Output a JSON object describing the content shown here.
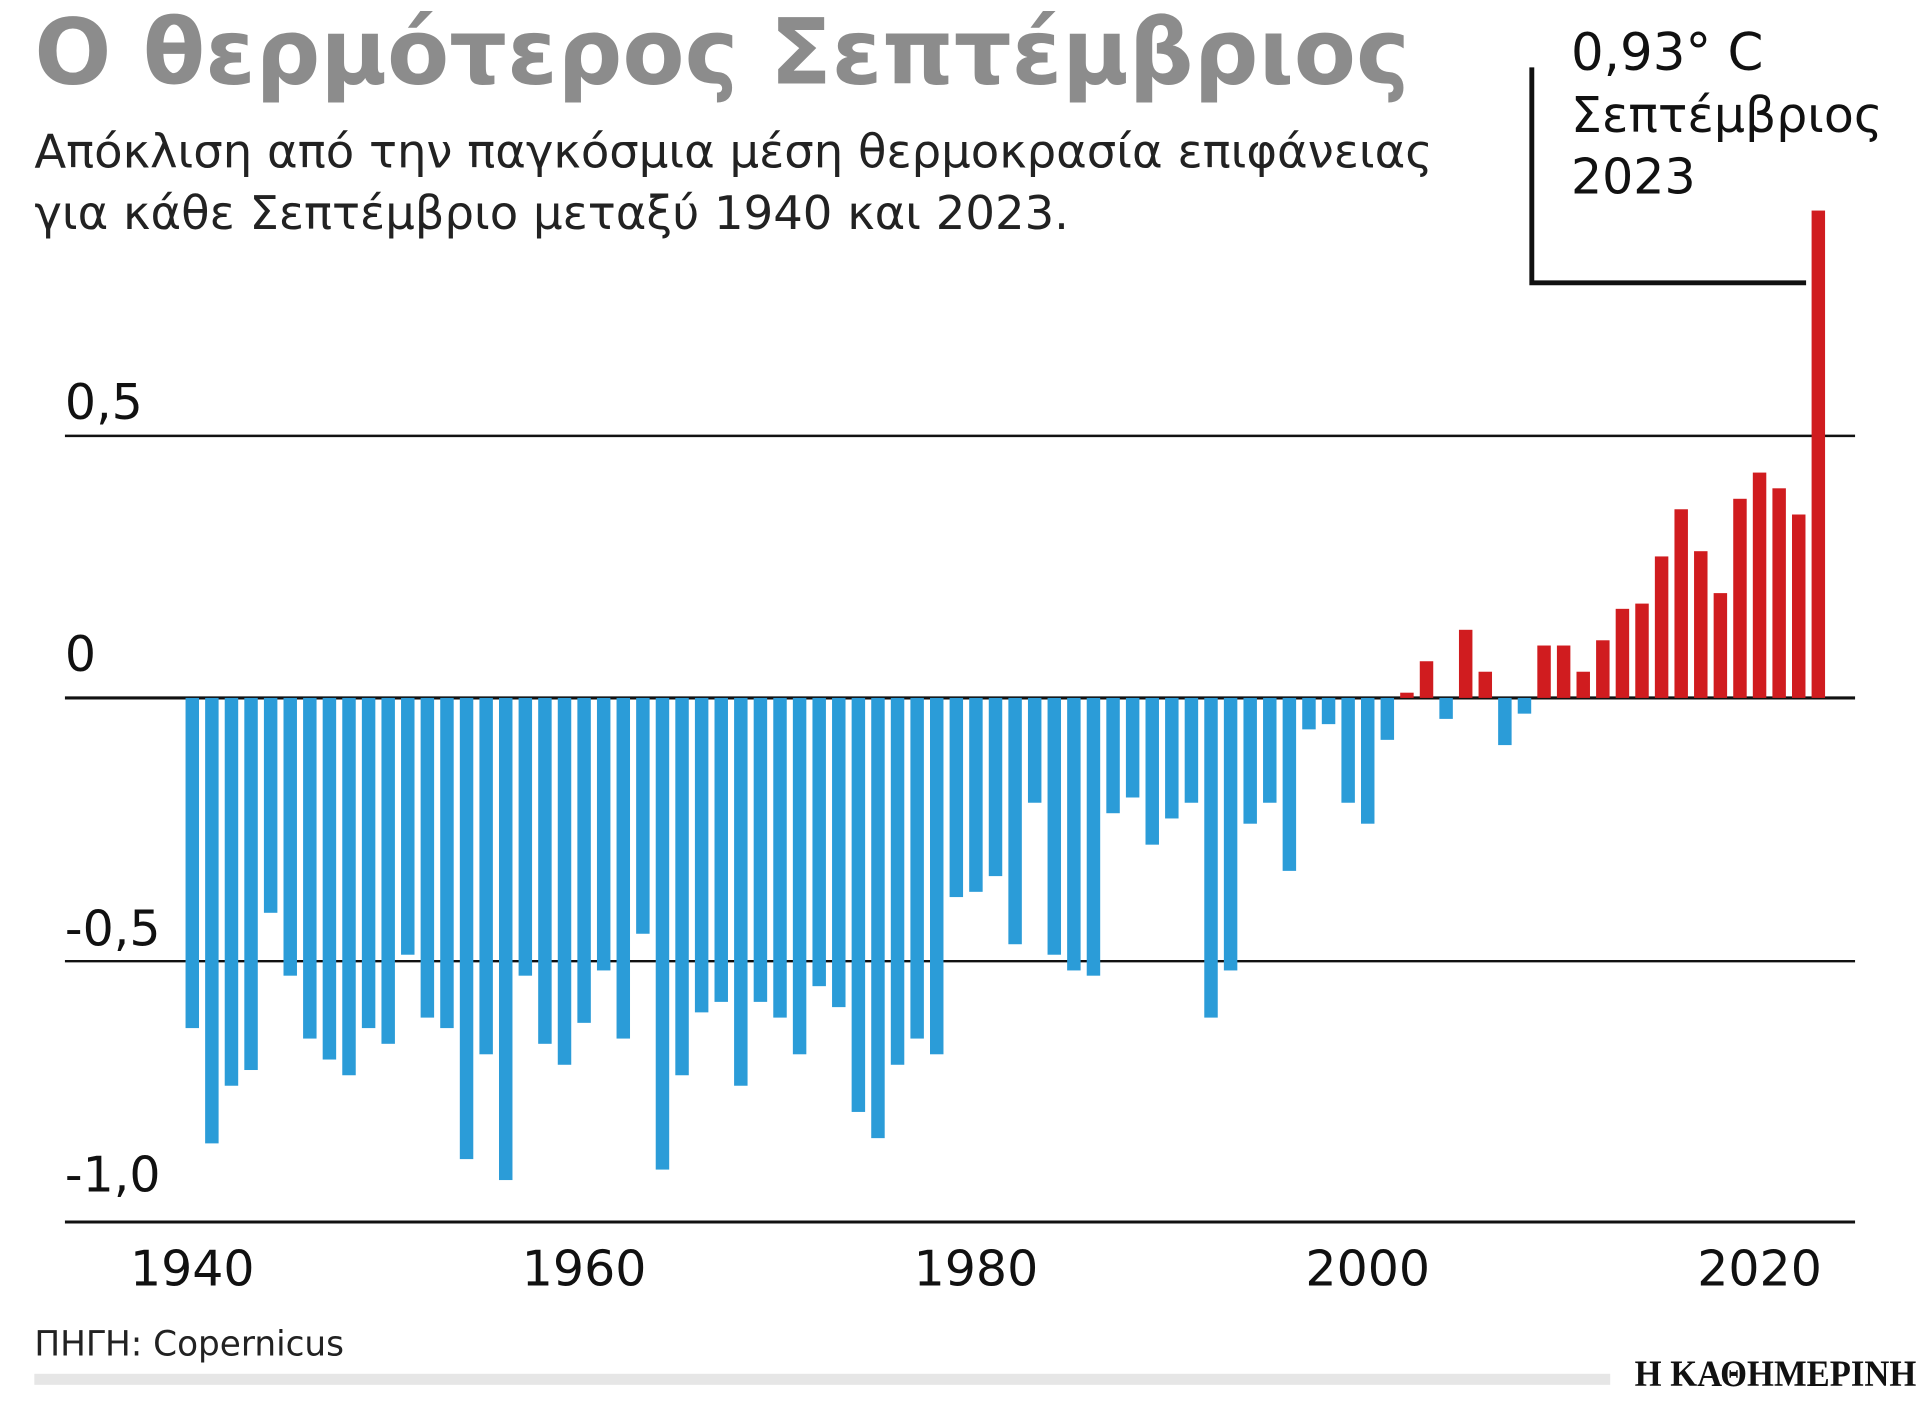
{
  "title": "Ο θερμότερος Σεπτέμβριος",
  "subtitle_line1": "Απόκλιση από την παγκόσμια μέση θερμοκρασία επιφάνειας",
  "subtitle_line2": "για κάθε Σεπτέμβριο μεταξύ 1940 και 2023.",
  "annotation": {
    "value": "0,93° C",
    "line2": "Σεπτέμβριος",
    "line3": "2023"
  },
  "source": "ΠΗΓΗ: Copernicus",
  "logo": "Η ΚΑΘΗΜΕΡΙΝΗ",
  "colors": {
    "negative": "#2b9cd8",
    "positive": "#d01c1f",
    "title": "#8c8c8c"
  },
  "chart_data": {
    "type": "bar",
    "title": "Ο θερμότερος Σεπτέμβριος",
    "xlabel": "",
    "ylabel": "",
    "ylim": [
      -1.0,
      0.93
    ],
    "grid": true,
    "y_ticks": [
      {
        "value": 0.5,
        "label": "0,5"
      },
      {
        "value": 0,
        "label": "0"
      },
      {
        "value": -0.5,
        "label": "-0,5"
      },
      {
        "value": -1.0,
        "label": "-1,0"
      }
    ],
    "x_ticks": [
      {
        "value": 1940,
        "label": "1940"
      },
      {
        "value": 1960,
        "label": "1960"
      },
      {
        "value": 1980,
        "label": "1980"
      },
      {
        "value": 2000,
        "label": "2000"
      },
      {
        "value": 2020,
        "label": "2020"
      }
    ],
    "x": [
      1940,
      1941,
      1942,
      1943,
      1944,
      1945,
      1946,
      1947,
      1948,
      1949,
      1950,
      1951,
      1952,
      1953,
      1954,
      1955,
      1956,
      1957,
      1958,
      1959,
      1960,
      1961,
      1962,
      1963,
      1964,
      1965,
      1966,
      1967,
      1968,
      1969,
      1970,
      1971,
      1972,
      1973,
      1974,
      1975,
      1976,
      1977,
      1978,
      1979,
      1980,
      1981,
      1982,
      1983,
      1984,
      1985,
      1986,
      1987,
      1988,
      1989,
      1990,
      1991,
      1992,
      1993,
      1994,
      1995,
      1996,
      1997,
      1998,
      1999,
      2000,
      2001,
      2002,
      2003,
      2004,
      2005,
      2006,
      2007,
      2008,
      2009,
      2010,
      2011,
      2012,
      2013,
      2014,
      2015,
      2016,
      2017,
      2018,
      2019,
      2020,
      2021,
      2022,
      2023
    ],
    "values": [
      -0.63,
      -0.85,
      -0.74,
      -0.71,
      -0.41,
      -0.53,
      -0.65,
      -0.69,
      -0.72,
      -0.63,
      -0.66,
      -0.49,
      -0.61,
      -0.63,
      -0.88,
      -0.68,
      -0.92,
      -0.53,
      -0.66,
      -0.7,
      -0.62,
      -0.52,
      -0.65,
      -0.45,
      -0.9,
      -0.72,
      -0.6,
      -0.58,
      -0.74,
      -0.58,
      -0.61,
      -0.68,
      -0.55,
      -0.59,
      -0.79,
      -0.84,
      -0.7,
      -0.65,
      -0.68,
      -0.38,
      -0.37,
      -0.34,
      -0.47,
      -0.2,
      -0.49,
      -0.52,
      -0.53,
      -0.22,
      -0.19,
      -0.28,
      -0.23,
      -0.2,
      -0.61,
      -0.52,
      -0.24,
      -0.2,
      -0.33,
      -0.06,
      -0.05,
      -0.2,
      -0.24,
      -0.08,
      0.01,
      0.07,
      -0.04,
      0.13,
      0.05,
      -0.09,
      -0.03,
      0.1,
      0.1,
      0.05,
      0.11,
      0.17,
      0.18,
      0.27,
      0.36,
      0.28,
      0.2,
      0.38,
      0.43,
      0.4,
      0.35,
      0.93
    ]
  }
}
